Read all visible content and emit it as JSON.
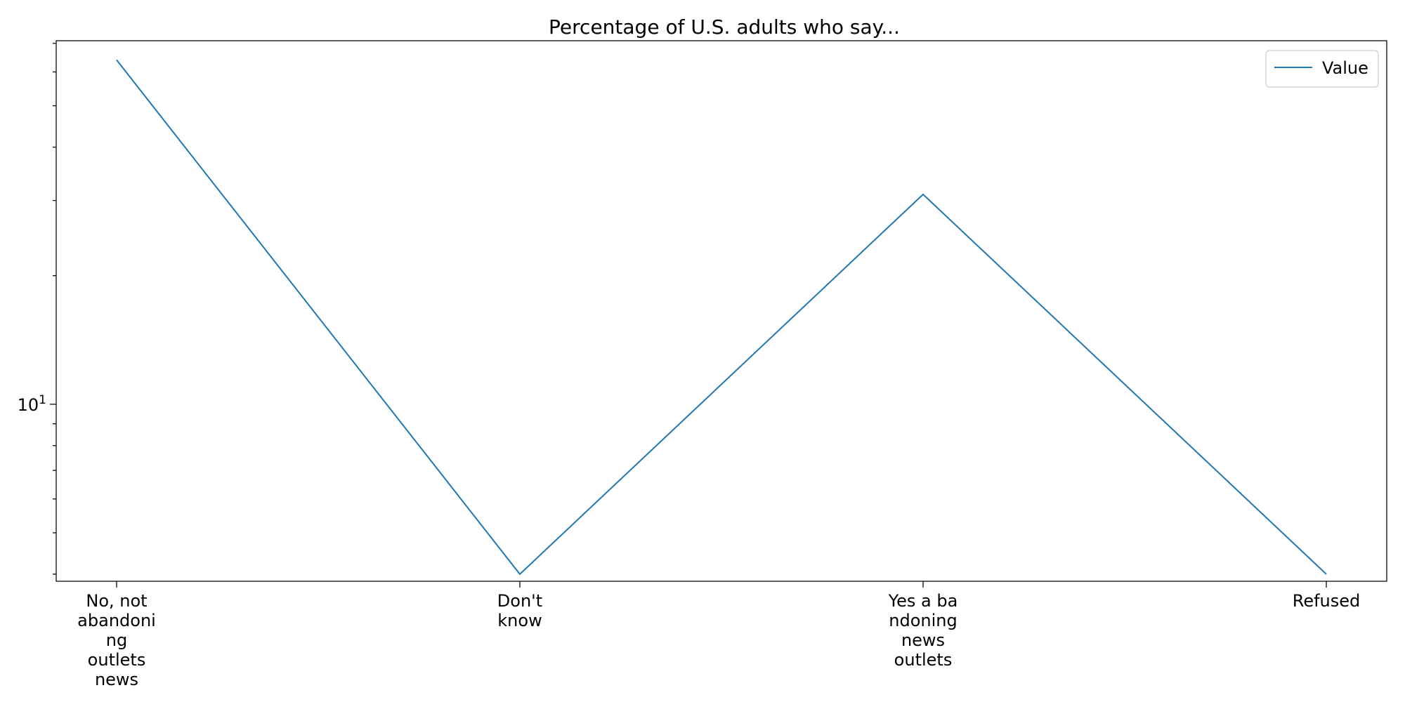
{
  "chart_data": {
    "type": "line",
    "title": "Percentage of U.S. adults who say...",
    "xlabel": "",
    "ylabel": "",
    "yscale": "log",
    "ylim": [
      3.85,
      71
    ],
    "grid": false,
    "legend_position": "top-right",
    "categories": [
      [
        "No, not",
        "abandoni",
        "ng",
        "outlets",
        "news"
      ],
      [
        "Don't",
        "know"
      ],
      [
        "Yes a ba",
        "ndoning",
        "news",
        "outlets"
      ],
      [
        "Refused"
      ]
    ],
    "y_tick_labels": [
      {
        "value": 10,
        "base": "10",
        "exponent": "1"
      }
    ],
    "series": [
      {
        "name": "Value",
        "color": "#1f77b4",
        "values": [
          64,
          4,
          31,
          4
        ]
      }
    ]
  }
}
